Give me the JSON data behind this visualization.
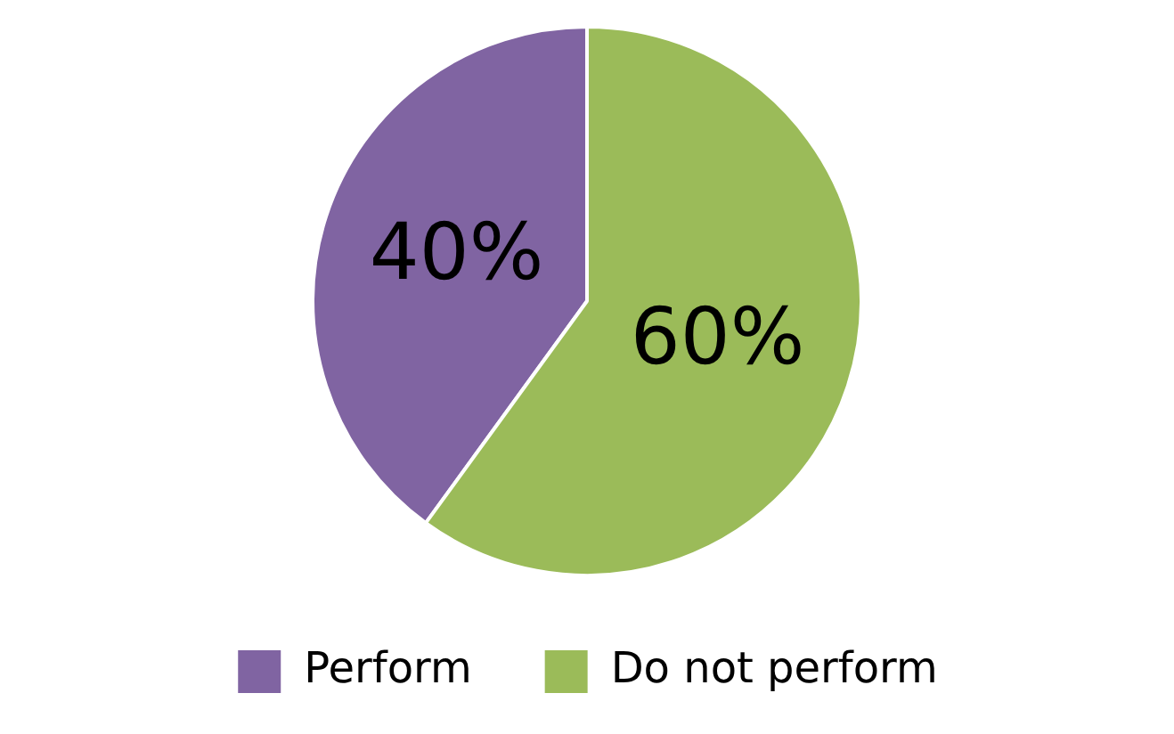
{
  "chart_data": {
    "type": "pie",
    "categories": [
      "Perform",
      "Do not perform"
    ],
    "values": [
      40,
      60
    ],
    "colors": [
      "#8064a2",
      "#9bbb59"
    ],
    "value_labels": [
      "40%",
      "60%"
    ],
    "legend": "bottom"
  }
}
